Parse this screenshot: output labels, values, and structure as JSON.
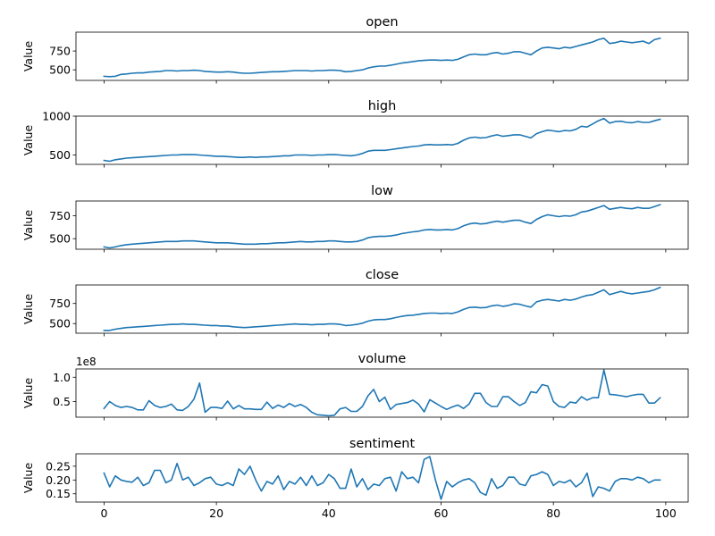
{
  "chart_data": [
    {
      "type": "line",
      "title": "open",
      "ylabel": "Value",
      "xlim": [
        -5,
        104
      ],
      "ylim": [
        360,
        1000
      ],
      "yticks": [
        500,
        750
      ],
      "ytick_labels": [
        "500",
        "750"
      ],
      "line_color": "#1f77b4",
      "grid": false,
      "x": [
        0,
        1,
        2,
        3,
        4,
        5,
        6,
        7,
        8,
        9,
        10,
        11,
        12,
        13,
        14,
        15,
        16,
        17,
        18,
        19,
        20,
        21,
        22,
        23,
        24,
        25,
        26,
        27,
        28,
        29,
        30,
        31,
        32,
        33,
        34,
        35,
        36,
        37,
        38,
        39,
        40,
        41,
        42,
        43,
        44,
        45,
        46,
        47,
        48,
        49,
        50,
        51,
        52,
        53,
        54,
        55,
        56,
        57,
        58,
        59,
        60,
        61,
        62,
        63,
        64,
        65,
        66,
        67,
        68,
        69,
        70,
        71,
        72,
        73,
        74,
        75,
        76,
        77,
        78,
        79,
        80,
        81,
        82,
        83,
        84,
        85,
        86,
        87,
        88,
        89,
        90,
        91,
        92,
        93,
        94,
        95,
        96,
        97,
        98,
        99
      ],
      "values": [
        415,
        410,
        415,
        440,
        445,
        455,
        460,
        460,
        470,
        475,
        480,
        490,
        490,
        485,
        490,
        490,
        495,
        490,
        480,
        475,
        470,
        470,
        475,
        470,
        460,
        455,
        455,
        460,
        465,
        470,
        475,
        475,
        480,
        485,
        490,
        490,
        490,
        485,
        490,
        490,
        495,
        495,
        490,
        475,
        480,
        490,
        500,
        525,
        540,
        550,
        550,
        560,
        575,
        590,
        600,
        610,
        620,
        625,
        630,
        630,
        625,
        630,
        625,
        640,
        670,
        700,
        710,
        700,
        700,
        720,
        730,
        710,
        720,
        740,
        740,
        720,
        700,
        750,
        790,
        800,
        790,
        780,
        800,
        790,
        810,
        830,
        850,
        870,
        900,
        920,
        850,
        860,
        880,
        870,
        860,
        870,
        880,
        850,
        900,
        920
      ]
    },
    {
      "type": "line",
      "title": "high",
      "ylabel": "Value",
      "xlim": [
        -5,
        104
      ],
      "ylim": [
        380,
        1000
      ],
      "yticks": [
        500,
        1000
      ],
      "ytick_labels": [
        "500",
        "1000"
      ],
      "line_color": "#1f77b4",
      "grid": false,
      "x": [
        0,
        1,
        2,
        3,
        4,
        5,
        6,
        7,
        8,
        9,
        10,
        11,
        12,
        13,
        14,
        15,
        16,
        17,
        18,
        19,
        20,
        21,
        22,
        23,
        24,
        25,
        26,
        27,
        28,
        29,
        30,
        31,
        32,
        33,
        34,
        35,
        36,
        37,
        38,
        39,
        40,
        41,
        42,
        43,
        44,
        45,
        46,
        47,
        48,
        49,
        50,
        51,
        52,
        53,
        54,
        55,
        56,
        57,
        58,
        59,
        60,
        61,
        62,
        63,
        64,
        65,
        66,
        67,
        68,
        69,
        70,
        71,
        72,
        73,
        74,
        75,
        76,
        77,
        78,
        79,
        80,
        81,
        82,
        83,
        84,
        85,
        86,
        87,
        88,
        89,
        90,
        91,
        92,
        93,
        94,
        95,
        96,
        97,
        98,
        99
      ],
      "values": [
        430,
        420,
        440,
        450,
        460,
        465,
        470,
        475,
        480,
        485,
        490,
        495,
        500,
        500,
        505,
        505,
        505,
        500,
        495,
        490,
        485,
        485,
        480,
        475,
        470,
        470,
        475,
        470,
        475,
        475,
        480,
        485,
        490,
        490,
        500,
        500,
        500,
        495,
        500,
        500,
        505,
        505,
        500,
        495,
        490,
        500,
        520,
        550,
        560,
        560,
        560,
        570,
        580,
        590,
        600,
        610,
        615,
        630,
        635,
        630,
        630,
        635,
        630,
        650,
        690,
        720,
        730,
        720,
        725,
        745,
        760,
        740,
        750,
        760,
        760,
        740,
        720,
        775,
        800,
        820,
        810,
        800,
        815,
        810,
        830,
        870,
        860,
        900,
        940,
        970,
        910,
        930,
        935,
        920,
        915,
        930,
        920,
        920,
        940,
        960
      ]
    },
    {
      "type": "line",
      "title": "low",
      "ylabel": "Value",
      "xlim": [
        -5,
        104
      ],
      "ylim": [
        385,
        910
      ],
      "yticks": [
        500,
        750
      ],
      "ytick_labels": [
        "500",
        "750"
      ],
      "line_color": "#1f77b4",
      "grid": false,
      "x": [
        0,
        1,
        2,
        3,
        4,
        5,
        6,
        7,
        8,
        9,
        10,
        11,
        12,
        13,
        14,
        15,
        16,
        17,
        18,
        19,
        20,
        21,
        22,
        23,
        24,
        25,
        26,
        27,
        28,
        29,
        30,
        31,
        32,
        33,
        34,
        35,
        36,
        37,
        38,
        39,
        40,
        41,
        42,
        43,
        44,
        45,
        46,
        47,
        48,
        49,
        50,
        51,
        52,
        53,
        54,
        55,
        56,
        57,
        58,
        59,
        60,
        61,
        62,
        63,
        64,
        65,
        66,
        67,
        68,
        69,
        70,
        71,
        72,
        73,
        74,
        75,
        76,
        77,
        78,
        79,
        80,
        81,
        82,
        83,
        84,
        85,
        86,
        87,
        88,
        89,
        90,
        91,
        92,
        93,
        94,
        95,
        96,
        97,
        98,
        99
      ],
      "values": [
        410,
        400,
        410,
        425,
        435,
        440,
        445,
        450,
        455,
        460,
        465,
        470,
        470,
        470,
        475,
        475,
        475,
        470,
        465,
        460,
        455,
        455,
        455,
        450,
        445,
        440,
        440,
        440,
        445,
        445,
        450,
        455,
        455,
        460,
        465,
        470,
        465,
        465,
        470,
        470,
        475,
        475,
        470,
        465,
        465,
        470,
        485,
        510,
        520,
        525,
        525,
        530,
        540,
        555,
        565,
        575,
        580,
        595,
        600,
        595,
        595,
        600,
        595,
        610,
        640,
        660,
        670,
        660,
        665,
        680,
        690,
        680,
        690,
        700,
        700,
        680,
        665,
        710,
        740,
        760,
        750,
        740,
        750,
        745,
        760,
        790,
        800,
        820,
        840,
        860,
        820,
        830,
        840,
        830,
        825,
        840,
        830,
        830,
        850,
        870
      ]
    },
    {
      "type": "line",
      "title": "close",
      "ylabel": "Value",
      "xlim": [
        -5,
        104
      ],
      "ylim": [
        380,
        980
      ],
      "yticks": [
        500,
        750
      ],
      "ytick_labels": [
        "500",
        "750"
      ],
      "line_color": "#1f77b4",
      "grid": false,
      "x": [
        0,
        1,
        2,
        3,
        4,
        5,
        6,
        7,
        8,
        9,
        10,
        11,
        12,
        13,
        14,
        15,
        16,
        17,
        18,
        19,
        20,
        21,
        22,
        23,
        24,
        25,
        26,
        27,
        28,
        29,
        30,
        31,
        32,
        33,
        34,
        35,
        36,
        37,
        38,
        39,
        40,
        41,
        42,
        43,
        44,
        45,
        46,
        47,
        48,
        49,
        50,
        51,
        52,
        53,
        54,
        55,
        56,
        57,
        58,
        59,
        60,
        61,
        62,
        63,
        64,
        65,
        66,
        67,
        68,
        69,
        70,
        71,
        72,
        73,
        74,
        75,
        76,
        77,
        78,
        79,
        80,
        81,
        82,
        83,
        84,
        85,
        86,
        87,
        88,
        89,
        90,
        91,
        92,
        93,
        94,
        95,
        96,
        97,
        98,
        99
      ],
      "values": [
        415,
        415,
        430,
        440,
        450,
        455,
        460,
        465,
        470,
        475,
        480,
        485,
        490,
        490,
        495,
        490,
        490,
        485,
        480,
        475,
        475,
        470,
        470,
        460,
        455,
        450,
        455,
        460,
        465,
        470,
        475,
        480,
        485,
        490,
        495,
        490,
        490,
        485,
        490,
        490,
        495,
        495,
        490,
        475,
        480,
        490,
        505,
        530,
        545,
        550,
        550,
        560,
        575,
        590,
        600,
        605,
        615,
        625,
        630,
        630,
        625,
        630,
        625,
        645,
        675,
        700,
        705,
        695,
        700,
        720,
        730,
        715,
        725,
        745,
        740,
        720,
        705,
        770,
        790,
        800,
        790,
        780,
        800,
        790,
        805,
        830,
        850,
        860,
        890,
        920,
        860,
        880,
        900,
        880,
        870,
        880,
        890,
        900,
        920,
        950
      ]
    },
    {
      "type": "line",
      "title": "volume",
      "ylabel": "Value",
      "offset_text": "1e8",
      "xlim": [
        -5,
        104
      ],
      "ylim": [
        0.18,
        1.17
      ],
      "yticks": [
        0.5,
        1.0
      ],
      "ytick_labels": [
        "0.5",
        "1.0"
      ],
      "line_color": "#1f77b4",
      "grid": false,
      "x": [
        0,
        1,
        2,
        3,
        4,
        5,
        6,
        7,
        8,
        9,
        10,
        11,
        12,
        13,
        14,
        15,
        16,
        17,
        18,
        19,
        20,
        21,
        22,
        23,
        24,
        25,
        26,
        27,
        28,
        29,
        30,
        31,
        32,
        33,
        34,
        35,
        36,
        37,
        38,
        39,
        40,
        41,
        42,
        43,
        44,
        45,
        46,
        47,
        48,
        49,
        50,
        51,
        52,
        53,
        54,
        55,
        56,
        57,
        58,
        59,
        60,
        61,
        62,
        63,
        64,
        65,
        66,
        67,
        68,
        69,
        70,
        71,
        72,
        73,
        74,
        75,
        76,
        77,
        78,
        79,
        80,
        81,
        82,
        83,
        84,
        85,
        86,
        87,
        88,
        89,
        90,
        91,
        92,
        93,
        94,
        95,
        96,
        97,
        98,
        99
      ],
      "values": [
        0.36,
        0.5,
        0.42,
        0.38,
        0.4,
        0.38,
        0.33,
        0.33,
        0.52,
        0.42,
        0.38,
        0.4,
        0.45,
        0.33,
        0.32,
        0.4,
        0.55,
        0.88,
        0.28,
        0.38,
        0.38,
        0.36,
        0.51,
        0.35,
        0.42,
        0.35,
        0.35,
        0.34,
        0.34,
        0.49,
        0.36,
        0.43,
        0.38,
        0.46,
        0.4,
        0.44,
        0.38,
        0.28,
        0.23,
        0.22,
        0.21,
        0.22,
        0.35,
        0.38,
        0.3,
        0.3,
        0.4,
        0.62,
        0.75,
        0.5,
        0.59,
        0.34,
        0.44,
        0.46,
        0.48,
        0.53,
        0.45,
        0.29,
        0.54,
        0.47,
        0.4,
        0.34,
        0.39,
        0.43,
        0.36,
        0.45,
        0.67,
        0.67,
        0.48,
        0.4,
        0.4,
        0.6,
        0.6,
        0.5,
        0.42,
        0.48,
        0.7,
        0.68,
        0.85,
        0.82,
        0.5,
        0.4,
        0.38,
        0.49,
        0.47,
        0.6,
        0.53,
        0.58,
        0.58,
        1.15,
        0.65,
        0.64,
        0.62,
        0.6,
        0.63,
        0.65,
        0.65,
        0.47,
        0.47,
        0.58
      ]
    },
    {
      "type": "line",
      "title": "sentiment",
      "ylabel": "Value",
      "xlim": [
        -5,
        104
      ],
      "ylim": [
        0.12,
        0.295
      ],
      "yticks": [
        0.15,
        0.2,
        0.25
      ],
      "ytick_labels": [
        "0.15",
        "0.20",
        "0.25"
      ],
      "xticks": [
        0,
        20,
        40,
        60,
        80,
        100
      ],
      "xtick_labels": [
        "0",
        "20",
        "40",
        "60",
        "80",
        "100"
      ],
      "line_color": "#1f77b4",
      "grid": false,
      "x": [
        0,
        1,
        2,
        3,
        4,
        5,
        6,
        7,
        8,
        9,
        10,
        11,
        12,
        13,
        14,
        15,
        16,
        17,
        18,
        19,
        20,
        21,
        22,
        23,
        24,
        25,
        26,
        27,
        28,
        29,
        30,
        31,
        32,
        33,
        34,
        35,
        36,
        37,
        38,
        39,
        40,
        41,
        42,
        43,
        44,
        45,
        46,
        47,
        48,
        49,
        50,
        51,
        52,
        53,
        54,
        55,
        56,
        57,
        58,
        59,
        60,
        61,
        62,
        63,
        64,
        65,
        66,
        67,
        68,
        69,
        70,
        71,
        72,
        73,
        74,
        75,
        76,
        77,
        78,
        79,
        80,
        81,
        82,
        83,
        84,
        85,
        86,
        87,
        88,
        89,
        90,
        91,
        92,
        93,
        94,
        95,
        96,
        97,
        98,
        99
      ],
      "values": [
        0.225,
        0.175,
        0.215,
        0.2,
        0.195,
        0.192,
        0.21,
        0.18,
        0.19,
        0.235,
        0.235,
        0.19,
        0.2,
        0.26,
        0.2,
        0.21,
        0.18,
        0.19,
        0.205,
        0.21,
        0.185,
        0.18,
        0.19,
        0.18,
        0.24,
        0.22,
        0.25,
        0.2,
        0.16,
        0.195,
        0.185,
        0.215,
        0.165,
        0.195,
        0.185,
        0.21,
        0.18,
        0.215,
        0.18,
        0.19,
        0.22,
        0.205,
        0.17,
        0.17,
        0.24,
        0.175,
        0.205,
        0.165,
        0.185,
        0.18,
        0.205,
        0.21,
        0.16,
        0.23,
        0.205,
        0.21,
        0.19,
        0.275,
        0.285,
        0.2,
        0.13,
        0.195,
        0.175,
        0.19,
        0.2,
        0.205,
        0.19,
        0.155,
        0.145,
        0.205,
        0.17,
        0.18,
        0.21,
        0.21,
        0.185,
        0.18,
        0.215,
        0.22,
        0.23,
        0.22,
        0.18,
        0.195,
        0.19,
        0.2,
        0.175,
        0.19,
        0.225,
        0.14,
        0.175,
        0.17,
        0.16,
        0.195,
        0.205,
        0.205,
        0.2,
        0.21,
        0.205,
        0.19,
        0.2,
        0.2
      ]
    }
  ]
}
